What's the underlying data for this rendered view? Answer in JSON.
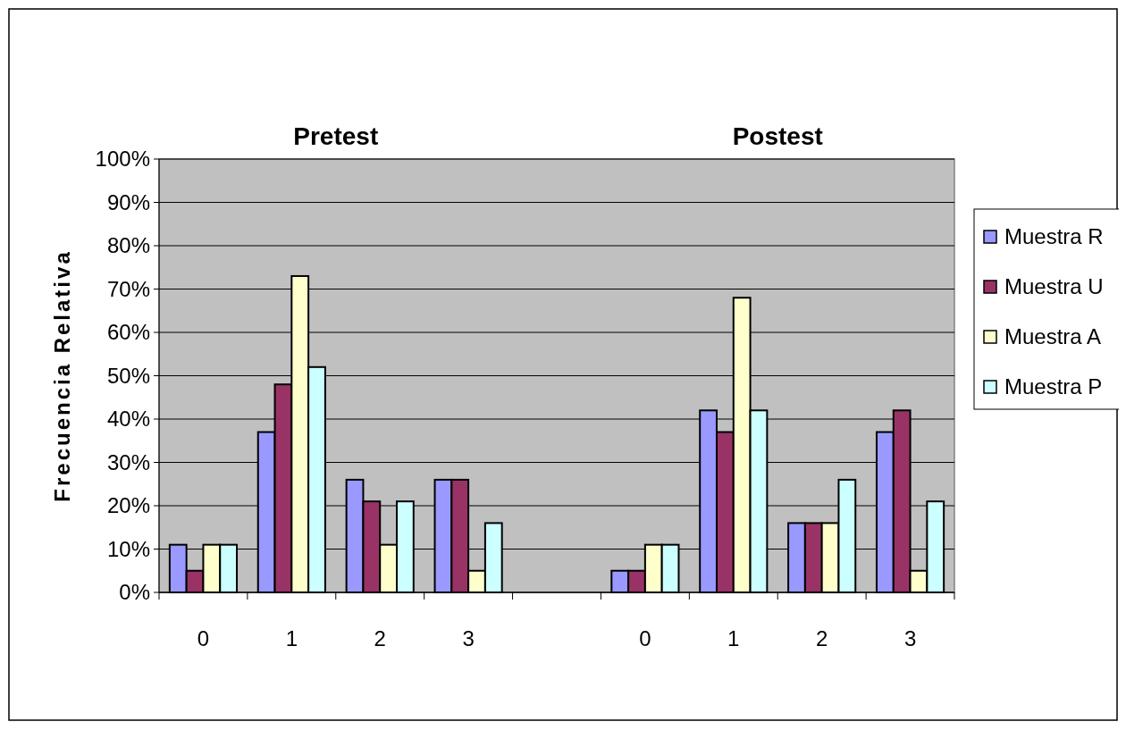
{
  "chart_data": {
    "type": "bar",
    "ylabel": "Frecuencia Relativa",
    "annotations": [
      "Pretest",
      "Postest"
    ],
    "categories": [
      "0",
      "1",
      "2",
      "3",
      null,
      "0",
      "1",
      "2",
      "3"
    ],
    "series": [
      {
        "name": "Muestra R",
        "color": "#9999ff",
        "values": [
          11,
          37,
          26,
          26,
          null,
          5,
          42,
          16,
          37
        ]
      },
      {
        "name": "Muestra U",
        "color": "#993366",
        "values": [
          5,
          48,
          21,
          26,
          null,
          5,
          37,
          16,
          42
        ]
      },
      {
        "name": "Muestra A",
        "color": "#ffffcc",
        "values": [
          11,
          73,
          11,
          5,
          null,
          11,
          68,
          16,
          5
        ]
      },
      {
        "name": "Muestra P",
        "color": "#ccffff",
        "values": [
          11,
          52,
          21,
          16,
          null,
          11,
          42,
          26,
          21
        ]
      }
    ],
    "ylim": [
      0,
      100
    ],
    "yticks": [
      {
        "value": 0,
        "label": "0%"
      },
      {
        "value": 10,
        "label": "10%"
      },
      {
        "value": 20,
        "label": "20%"
      },
      {
        "value": 30,
        "label": "30%"
      },
      {
        "value": 40,
        "label": "40%"
      },
      {
        "value": 50,
        "label": "50%"
      },
      {
        "value": 60,
        "label": "60%"
      },
      {
        "value": 70,
        "label": "70%"
      },
      {
        "value": 80,
        "label": "80%"
      },
      {
        "value": 90,
        "label": "90%"
      },
      {
        "value": 100,
        "label": "100%"
      }
    ],
    "grid": "y",
    "legend": "right"
  }
}
